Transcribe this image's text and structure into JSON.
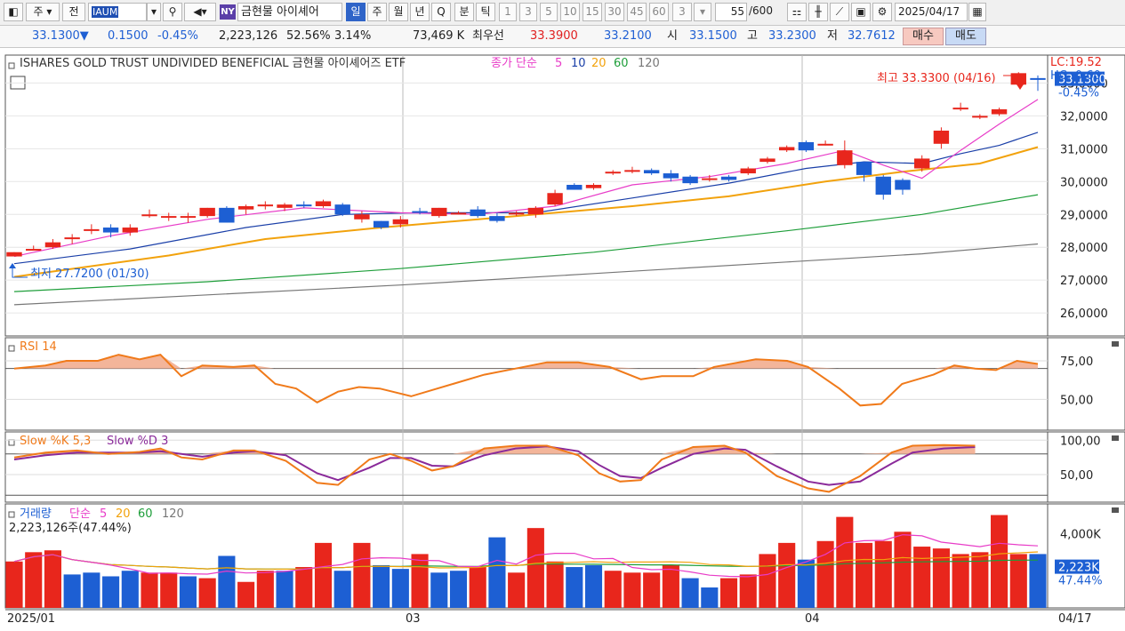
{
  "toolbar": {
    "type_label": "주",
    "prev_label": "전",
    "code": "IAUM",
    "market_badge": "NY",
    "name": "금현물 아이셰어",
    "period_tabs": [
      "일",
      "주",
      "월",
      "년",
      "Q"
    ],
    "active_period": "일",
    "minute_tabs": [
      "분",
      "틱"
    ],
    "interval_buttons": [
      "1",
      "3",
      "5",
      "10",
      "15",
      "30",
      "45",
      "60"
    ],
    "custom_interval": "3",
    "count_value": "55",
    "count_total": "/600",
    "date": "2025/04/17"
  },
  "quote": {
    "price": "33.1300",
    "direction": "▼",
    "change": "0.1500",
    "change_pct": "-0.45%",
    "volume": "2,223,126",
    "volume_ratio": "52.56%",
    "turnover": "3.14%",
    "trade_amount": "73,469 K",
    "best_label": "최우선",
    "best_ask": "33.3900",
    "best_bid": "33.2100",
    "open_label": "시",
    "open": "33.1500",
    "high_label": "고",
    "high": "33.2300",
    "low_label": "저",
    "low": "32.7612",
    "buy_label": "매수",
    "sell_label": "매도"
  },
  "price_panel": {
    "title": "ISHARES GOLD TRUST UNDIVIDED BENEFICIAL  금현물 아이셰어즈 ETF",
    "ma_label": "종가 단순",
    "lc": "LC:19.52",
    "hc": "HC:-0.60",
    "high_note": "최고 33.3300 (04/16)",
    "low_note": "최저 27.7200 (01/30)",
    "current_price_tag": "33.1300",
    "current_change_tag": "-0.45%"
  },
  "rsi_panel": {
    "title": "RSI 14"
  },
  "stoch_panel": {
    "title_k": "Slow %K 5,3",
    "title_d": "Slow %D 3"
  },
  "volume_panel": {
    "title": "거래량",
    "ma_label": "단순",
    "info": "2,223,126주(47.44%)",
    "current_tag": "2,223K",
    "current_pct": "47.44%"
  },
  "colors": {
    "up": "#e8261c",
    "down": "#1d5fd3",
    "ma5": "#e83cc8",
    "ma10": "#1a3fa8",
    "ma20": "#f2a20c",
    "ma60": "#1e9e3a",
    "ma120": "#777777",
    "osc": "#f07a1a",
    "signal": "#8a2a9a"
  },
  "chart_data": {
    "type": "candlestick",
    "x_labels": [
      "2025/01",
      "03",
      "04",
      "04/17"
    ],
    "ylim": [
      25.3,
      33.85
    ],
    "y_ticks": [
      "33,0000",
      "32,0000",
      "31,0000",
      "30,0000",
      "29,0000",
      "28,0000",
      "27,0000",
      "26,0000"
    ],
    "ma_periods": [
      "5",
      "10",
      "20",
      "60",
      "120"
    ],
    "candles": [
      {
        "o": 27.72,
        "h": 27.85,
        "l": 27.72,
        "c": 27.85
      },
      {
        "o": 27.9,
        "h": 28.05,
        "l": 27.9,
        "c": 27.95
      },
      {
        "o": 28.0,
        "h": 28.25,
        "l": 27.95,
        "c": 28.15
      },
      {
        "o": 28.25,
        "h": 28.4,
        "l": 28.1,
        "c": 28.3
      },
      {
        "o": 28.5,
        "h": 28.7,
        "l": 28.4,
        "c": 28.55
      },
      {
        "o": 28.6,
        "h": 28.7,
        "l": 28.3,
        "c": 28.45
      },
      {
        "o": 28.45,
        "h": 28.7,
        "l": 28.35,
        "c": 28.6
      },
      {
        "o": 28.95,
        "h": 29.15,
        "l": 28.9,
        "c": 29.0
      },
      {
        "o": 28.9,
        "h": 29.05,
        "l": 28.8,
        "c": 28.95
      },
      {
        "o": 28.9,
        "h": 29.05,
        "l": 28.75,
        "c": 28.95
      },
      {
        "o": 28.95,
        "h": 29.2,
        "l": 28.9,
        "c": 29.2
      },
      {
        "o": 29.2,
        "h": 29.25,
        "l": 28.75,
        "c": 28.75
      },
      {
        "o": 29.15,
        "h": 29.3,
        "l": 29.0,
        "c": 29.25
      },
      {
        "o": 29.3,
        "h": 29.4,
        "l": 29.15,
        "c": 29.3
      },
      {
        "o": 29.2,
        "h": 29.35,
        "l": 29.1,
        "c": 29.3
      },
      {
        "o": 29.3,
        "h": 29.4,
        "l": 29.2,
        "c": 29.25
      },
      {
        "o": 29.25,
        "h": 29.45,
        "l": 29.2,
        "c": 29.4
      },
      {
        "o": 29.3,
        "h": 29.35,
        "l": 28.95,
        "c": 29.0
      },
      {
        "o": 28.85,
        "h": 29.1,
        "l": 28.75,
        "c": 29.0
      },
      {
        "o": 28.8,
        "h": 28.8,
        "l": 28.55,
        "c": 28.6
      },
      {
        "o": 28.7,
        "h": 28.95,
        "l": 28.6,
        "c": 28.85
      },
      {
        "o": 29.1,
        "h": 29.2,
        "l": 29.0,
        "c": 29.05
      },
      {
        "o": 28.95,
        "h": 29.2,
        "l": 28.9,
        "c": 29.2
      },
      {
        "o": 29.05,
        "h": 29.1,
        "l": 29.0,
        "c": 29.05
      },
      {
        "o": 29.15,
        "h": 29.25,
        "l": 28.9,
        "c": 28.95
      },
      {
        "o": 28.95,
        "h": 29.05,
        "l": 28.75,
        "c": 28.8
      },
      {
        "o": 29.0,
        "h": 29.1,
        "l": 28.95,
        "c": 29.05
      },
      {
        "o": 29.0,
        "h": 29.25,
        "l": 28.9,
        "c": 29.2
      },
      {
        "o": 29.3,
        "h": 29.75,
        "l": 29.25,
        "c": 29.65
      },
      {
        "o": 29.9,
        "h": 29.95,
        "l": 29.75,
        "c": 29.75
      },
      {
        "o": 29.8,
        "h": 29.95,
        "l": 29.75,
        "c": 29.9
      },
      {
        "o": 30.25,
        "h": 30.35,
        "l": 30.2,
        "c": 30.3
      },
      {
        "o": 30.3,
        "h": 30.45,
        "l": 30.25,
        "c": 30.35
      },
      {
        "o": 30.35,
        "h": 30.4,
        "l": 30.2,
        "c": 30.25
      },
      {
        "o": 30.25,
        "h": 30.35,
        "l": 30.0,
        "c": 30.1
      },
      {
        "o": 30.15,
        "h": 30.2,
        "l": 29.9,
        "c": 29.95
      },
      {
        "o": 30.1,
        "h": 30.2,
        "l": 30.0,
        "c": 30.1
      },
      {
        "o": 30.15,
        "h": 30.2,
        "l": 30.0,
        "c": 30.05
      },
      {
        "o": 30.25,
        "h": 30.45,
        "l": 30.2,
        "c": 30.4
      },
      {
        "o": 30.6,
        "h": 30.75,
        "l": 30.55,
        "c": 30.7
      },
      {
        "o": 30.95,
        "h": 31.1,
        "l": 30.9,
        "c": 31.05
      },
      {
        "o": 31.2,
        "h": 31.25,
        "l": 30.9,
        "c": 30.95
      },
      {
        "o": 31.15,
        "h": 31.25,
        "l": 31.1,
        "c": 31.15
      },
      {
        "o": 30.5,
        "h": 31.25,
        "l": 30.4,
        "c": 30.95
      },
      {
        "o": 30.6,
        "h": 30.6,
        "l": 30.0,
        "c": 30.2
      },
      {
        "o": 30.15,
        "h": 30.2,
        "l": 29.45,
        "c": 29.6
      },
      {
        "o": 30.05,
        "h": 30.1,
        "l": 29.6,
        "c": 29.75
      },
      {
        "o": 30.4,
        "h": 30.8,
        "l": 30.3,
        "c": 30.7
      },
      {
        "o": 31.15,
        "h": 31.65,
        "l": 31.0,
        "c": 31.55
      },
      {
        "o": 32.2,
        "h": 32.4,
        "l": 32.15,
        "c": 32.25
      },
      {
        "o": 31.95,
        "h": 32.05,
        "l": 31.9,
        "c": 32.0
      },
      {
        "o": 32.05,
        "h": 32.25,
        "l": 32.0,
        "c": 32.2
      },
      {
        "o": 32.95,
        "h": 33.33,
        "l": 32.9,
        "c": 33.3
      },
      {
        "o": 33.15,
        "h": 33.23,
        "l": 32.76,
        "c": 33.13
      }
    ],
    "ma5": [
      [
        0,
        27.72
      ],
      [
        5,
        28.35
      ],
      [
        10,
        28.85
      ],
      [
        15,
        29.2
      ],
      [
        20,
        29.05
      ],
      [
        24,
        29.0
      ],
      [
        28,
        29.25
      ],
      [
        32,
        29.9
      ],
      [
        36,
        30.15
      ],
      [
        40,
        30.55
      ],
      [
        43,
        30.95
      ],
      [
        45,
        30.5
      ],
      [
        47,
        30.1
      ],
      [
        49,
        30.95
      ],
      [
        51,
        31.75
      ],
      [
        53,
        32.5
      ]
    ],
    "ma10": [
      [
        0,
        27.5
      ],
      [
        6,
        27.95
      ],
      [
        12,
        28.6
      ],
      [
        17,
        29.0
      ],
      [
        21,
        29.05
      ],
      [
        27,
        29.05
      ],
      [
        32,
        29.5
      ],
      [
        37,
        29.95
      ],
      [
        41,
        30.4
      ],
      [
        44,
        30.6
      ],
      [
        47,
        30.55
      ],
      [
        49,
        30.85
      ],
      [
        51,
        31.1
      ],
      [
        53,
        31.5
      ]
    ],
    "ma20": [
      [
        0,
        27.1
      ],
      [
        8,
        27.75
      ],
      [
        13,
        28.25
      ],
      [
        19,
        28.6
      ],
      [
        26,
        28.95
      ],
      [
        32,
        29.25
      ],
      [
        37,
        29.55
      ],
      [
        42,
        30.0
      ],
      [
        46,
        30.3
      ],
      [
        50,
        30.55
      ],
      [
        53,
        31.05
      ]
    ],
    "ma60": [
      [
        0,
        26.65
      ],
      [
        10,
        26.95
      ],
      [
        20,
        27.35
      ],
      [
        30,
        27.85
      ],
      [
        40,
        28.5
      ],
      [
        47,
        29.0
      ],
      [
        53,
        29.6
      ]
    ],
    "ma120": [
      [
        0,
        26.25
      ],
      [
        10,
        26.55
      ],
      [
        20,
        26.85
      ],
      [
        30,
        27.2
      ],
      [
        40,
        27.55
      ],
      [
        47,
        27.8
      ],
      [
        53,
        28.1
      ]
    ],
    "rsi": [
      [
        0,
        70
      ],
      [
        3,
        72
      ],
      [
        5,
        75
      ],
      [
        8,
        75
      ],
      [
        10,
        79
      ],
      [
        12,
        76
      ],
      [
        14,
        79
      ],
      [
        16,
        65
      ],
      [
        18,
        72
      ],
      [
        21,
        71
      ],
      [
        23,
        72
      ],
      [
        25,
        60
      ],
      [
        27,
        57
      ],
      [
        29,
        48
      ],
      [
        31,
        55
      ],
      [
        33,
        58
      ],
      [
        35,
        57
      ],
      [
        38,
        52
      ],
      [
        40,
        56
      ],
      [
        42,
        60
      ],
      [
        45,
        66
      ],
      [
        48,
        70
      ],
      [
        51,
        74
      ],
      [
        54,
        74
      ],
      [
        57,
        71
      ],
      [
        60,
        63
      ],
      [
        62,
        65
      ],
      [
        65,
        65
      ],
      [
        67,
        71
      ],
      [
        71,
        76
      ],
      [
        74,
        75
      ],
      [
        76,
        71
      ],
      [
        79,
        57
      ],
      [
        81,
        46
      ],
      [
        83,
        47
      ],
      [
        85,
        60
      ],
      [
        88,
        66
      ],
      [
        90,
        72
      ],
      [
        92,
        70
      ],
      [
        94,
        69
      ],
      [
        96,
        75
      ],
      [
        98,
        73
      ]
    ],
    "rsi_ref": 70,
    "stoch_k": [
      [
        0,
        75
      ],
      [
        3,
        82
      ],
      [
        6,
        85
      ],
      [
        9,
        80
      ],
      [
        12,
        83
      ],
      [
        14,
        88
      ],
      [
        16,
        75
      ],
      [
        18,
        72
      ],
      [
        21,
        85
      ],
      [
        23,
        85
      ],
      [
        26,
        70
      ],
      [
        29,
        38
      ],
      [
        31,
        35
      ],
      [
        34,
        72
      ],
      [
        36,
        80
      ],
      [
        38,
        70
      ],
      [
        40,
        56
      ],
      [
        42,
        62
      ],
      [
        45,
        88
      ],
      [
        48,
        92
      ],
      [
        51,
        92
      ],
      [
        54,
        78
      ],
      [
        56,
        52
      ],
      [
        58,
        40
      ],
      [
        60,
        42
      ],
      [
        62,
        72
      ],
      [
        65,
        90
      ],
      [
        68,
        92
      ],
      [
        70,
        82
      ],
      [
        73,
        48
      ],
      [
        76,
        30
      ],
      [
        78,
        25
      ],
      [
        81,
        48
      ],
      [
        84,
        82
      ],
      [
        86,
        92
      ],
      [
        89,
        93
      ],
      [
        92,
        92
      ]
    ],
    "stoch_d": [
      [
        0,
        72
      ],
      [
        3,
        78
      ],
      [
        6,
        82
      ],
      [
        9,
        82
      ],
      [
        12,
        82
      ],
      [
        14,
        84
      ],
      [
        16,
        80
      ],
      [
        18,
        76
      ],
      [
        21,
        82
      ],
      [
        23,
        84
      ],
      [
        26,
        78
      ],
      [
        29,
        52
      ],
      [
        31,
        42
      ],
      [
        34,
        60
      ],
      [
        36,
        74
      ],
      [
        38,
        74
      ],
      [
        40,
        63
      ],
      [
        42,
        62
      ],
      [
        45,
        78
      ],
      [
        48,
        88
      ],
      [
        51,
        91
      ],
      [
        54,
        84
      ],
      [
        56,
        64
      ],
      [
        58,
        48
      ],
      [
        60,
        45
      ],
      [
        62,
        60
      ],
      [
        65,
        80
      ],
      [
        68,
        88
      ],
      [
        70,
        86
      ],
      [
        73,
        62
      ],
      [
        76,
        40
      ],
      [
        78,
        35
      ],
      [
        81,
        40
      ],
      [
        84,
        66
      ],
      [
        86,
        82
      ],
      [
        89,
        88
      ],
      [
        92,
        90
      ]
    ],
    "stoch_ref": 80,
    "volume_up": [
      1,
      1,
      1,
      0,
      0,
      0,
      0,
      1,
      1,
      0,
      1,
      0,
      1,
      1,
      0,
      1,
      1,
      0,
      1,
      0,
      0,
      1,
      0,
      0,
      1,
      0,
      1,
      1,
      1,
      0,
      0,
      1,
      1,
      1,
      1,
      0,
      0,
      1,
      1,
      1,
      1,
      0,
      1,
      1,
      1,
      1,
      1,
      1,
      1,
      1,
      1,
      1,
      1,
      0
    ],
    "volume": [
      2.5,
      3.0,
      3.1,
      1.8,
      1.9,
      1.7,
      2.0,
      1.9,
      1.9,
      1.7,
      1.6,
      2.8,
      1.4,
      2.0,
      2.0,
      2.2,
      3.5,
      2.0,
      3.5,
      2.3,
      2.1,
      2.9,
      1.9,
      2.0,
      2.2,
      3.8,
      1.9,
      4.3,
      2.5,
      2.2,
      2.3,
      2.0,
      1.9,
      1.9,
      2.3,
      1.6,
      1.1,
      1.6,
      1.8,
      2.9,
      3.5,
      2.6,
      3.6,
      4.9,
      3.5,
      3.6,
      4.1,
      3.3,
      3.2,
      2.9,
      3.0,
      5.0,
      2.9,
      2.9
    ]
  }
}
